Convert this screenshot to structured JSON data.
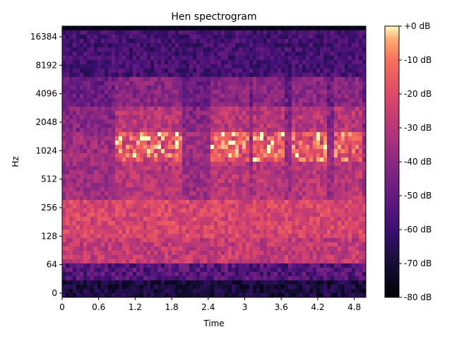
{
  "chart_data": {
    "type": "heatmap",
    "title": "Hen spectrogram",
    "xlabel": "Time",
    "ylabel": "Hz",
    "x_ticks": [
      0,
      0.6,
      1.2,
      1.8,
      2.4,
      3,
      3.6,
      4.2,
      4.8
    ],
    "x_tick_labels": [
      "0",
      "0.6",
      "1.2",
      "1.8",
      "2.4",
      "3",
      "3.6",
      "4.2",
      "4.8"
    ],
    "xlim": [
      0,
      4.99
    ],
    "y_scale": "symlog",
    "y_ticks": [
      0,
      64,
      128,
      256,
      512,
      1024,
      2048,
      4096,
      8192,
      16384
    ],
    "y_tick_labels": [
      "0",
      "64",
      "128",
      "256",
      "512",
      "1024",
      "2048",
      "4096",
      "8192",
      "16384"
    ],
    "ylim": [
      0,
      22050
    ],
    "colormap": "magma",
    "colorbar": {
      "ticks": [
        0,
        -10,
        -20,
        -30,
        -40,
        -50,
        -60,
        -70,
        -80
      ],
      "tick_labels": [
        "+0 dB",
        "-10 dB",
        "-20 dB",
        "-30 dB",
        "-40 dB",
        "-50 dB",
        "-60 dB",
        "-70 dB",
        "-80 dB"
      ],
      "range": [
        -80,
        0
      ]
    },
    "features": {
      "strong_bands_hz": [
        1024,
        1200,
        1500,
        300,
        200
      ],
      "bright_segments_time": [
        [
          0.9,
          1.9
        ],
        [
          2.5,
          3.0
        ],
        [
          3.2,
          3.6
        ],
        [
          3.8,
          4.3
        ],
        [
          4.5,
          4.9
        ]
      ]
    }
  },
  "colors": {
    "background": "#ffffff",
    "axis": "#000000"
  }
}
